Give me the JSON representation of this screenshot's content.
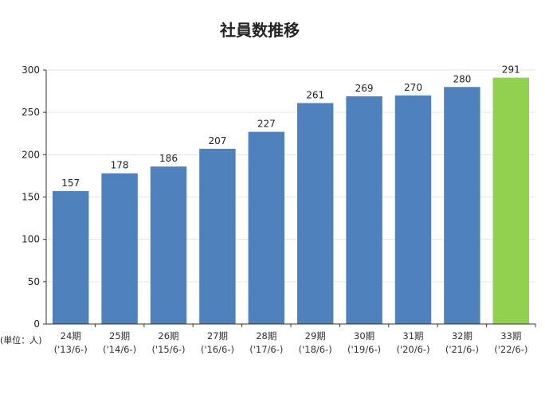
{
  "chart_data": {
    "type": "bar",
    "title": "社員数推移",
    "unit_label": "(単位：人)",
    "categories": [
      "24期",
      "25期",
      "26期",
      "27期",
      "28期",
      "29期",
      "30期",
      "31期",
      "32期",
      "33期"
    ],
    "sublabels": [
      "('13/6-)",
      "('14/6-)",
      "('15/6-)",
      "('16/6-)",
      "('17/6-)",
      "('18/6-)",
      "('19/6-)",
      "('20/6-)",
      "('21/6-)",
      "('22/6-)"
    ],
    "values": [
      157,
      178,
      186,
      207,
      227,
      261,
      269,
      270,
      280,
      291
    ],
    "value_labels": [
      "157",
      "178",
      "186",
      "207",
      "227",
      "261",
      "269",
      "270",
      "280",
      "291"
    ],
    "ylim": [
      0,
      300
    ],
    "yticks": [
      0,
      50,
      100,
      150,
      200,
      250,
      300
    ],
    "grid": true,
    "colors": {
      "bar": "#4f81bd",
      "highlight": "#92d050",
      "grid": "#e6e6e6",
      "axis": "#333333"
    },
    "highlight_index": 9
  }
}
